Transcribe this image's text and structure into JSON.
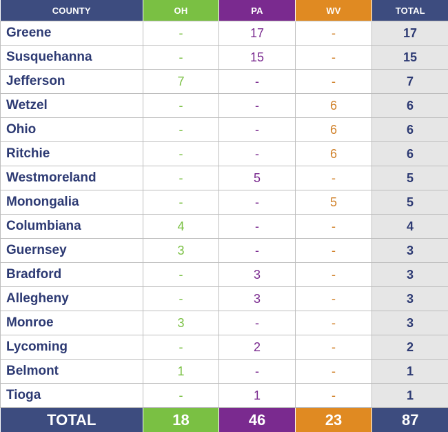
{
  "table": {
    "headers": {
      "county": "COUNTY",
      "oh": "OH",
      "pa": "PA",
      "wv": "WV",
      "total": "TOTAL"
    },
    "colors": {
      "navy": "#3d4c7f",
      "oh_green": "#7ac043",
      "pa_purple": "#7a2a8f",
      "wv_orange": "#e08a22",
      "total_bg": "#e6e6e6"
    },
    "rows": [
      {
        "county": "Greene",
        "oh": "-",
        "pa": "17",
        "wv": "-",
        "total": "17"
      },
      {
        "county": "Susquehanna",
        "oh": "-",
        "pa": "15",
        "wv": "-",
        "total": "15"
      },
      {
        "county": "Jefferson",
        "oh": "7",
        "pa": "-",
        "wv": "-",
        "total": "7"
      },
      {
        "county": "Wetzel",
        "oh": "-",
        "pa": "-",
        "wv": "6",
        "total": "6"
      },
      {
        "county": "Ohio",
        "oh": "-",
        "pa": "-",
        "wv": "6",
        "total": "6"
      },
      {
        "county": "Ritchie",
        "oh": "-",
        "pa": "-",
        "wv": "6",
        "total": "6"
      },
      {
        "county": "Westmoreland",
        "oh": "-",
        "pa": "5",
        "wv": "-",
        "total": "5"
      },
      {
        "county": "Monongalia",
        "oh": "-",
        "pa": "-",
        "wv": "5",
        "total": "5"
      },
      {
        "county": "Columbiana",
        "oh": "4",
        "pa": "-",
        "wv": "-",
        "total": "4"
      },
      {
        "county": "Guernsey",
        "oh": "3",
        "pa": "-",
        "wv": "-",
        "total": "3"
      },
      {
        "county": "Bradford",
        "oh": "-",
        "pa": "3",
        "wv": "-",
        "total": "3"
      },
      {
        "county": "Allegheny",
        "oh": "-",
        "pa": "3",
        "wv": "-",
        "total": "3"
      },
      {
        "county": "Monroe",
        "oh": "3",
        "pa": "-",
        "wv": "-",
        "total": "3"
      },
      {
        "county": "Lycoming",
        "oh": "-",
        "pa": "2",
        "wv": "-",
        "total": "2"
      },
      {
        "county": "Belmont",
        "oh": "1",
        "pa": "-",
        "wv": "-",
        "total": "1"
      },
      {
        "county": "Tioga",
        "oh": "-",
        "pa": "1",
        "wv": "-",
        "total": "1"
      }
    ],
    "footer": {
      "label": "TOTAL",
      "oh": "18",
      "pa": "46",
      "wv": "23",
      "total": "87"
    }
  }
}
